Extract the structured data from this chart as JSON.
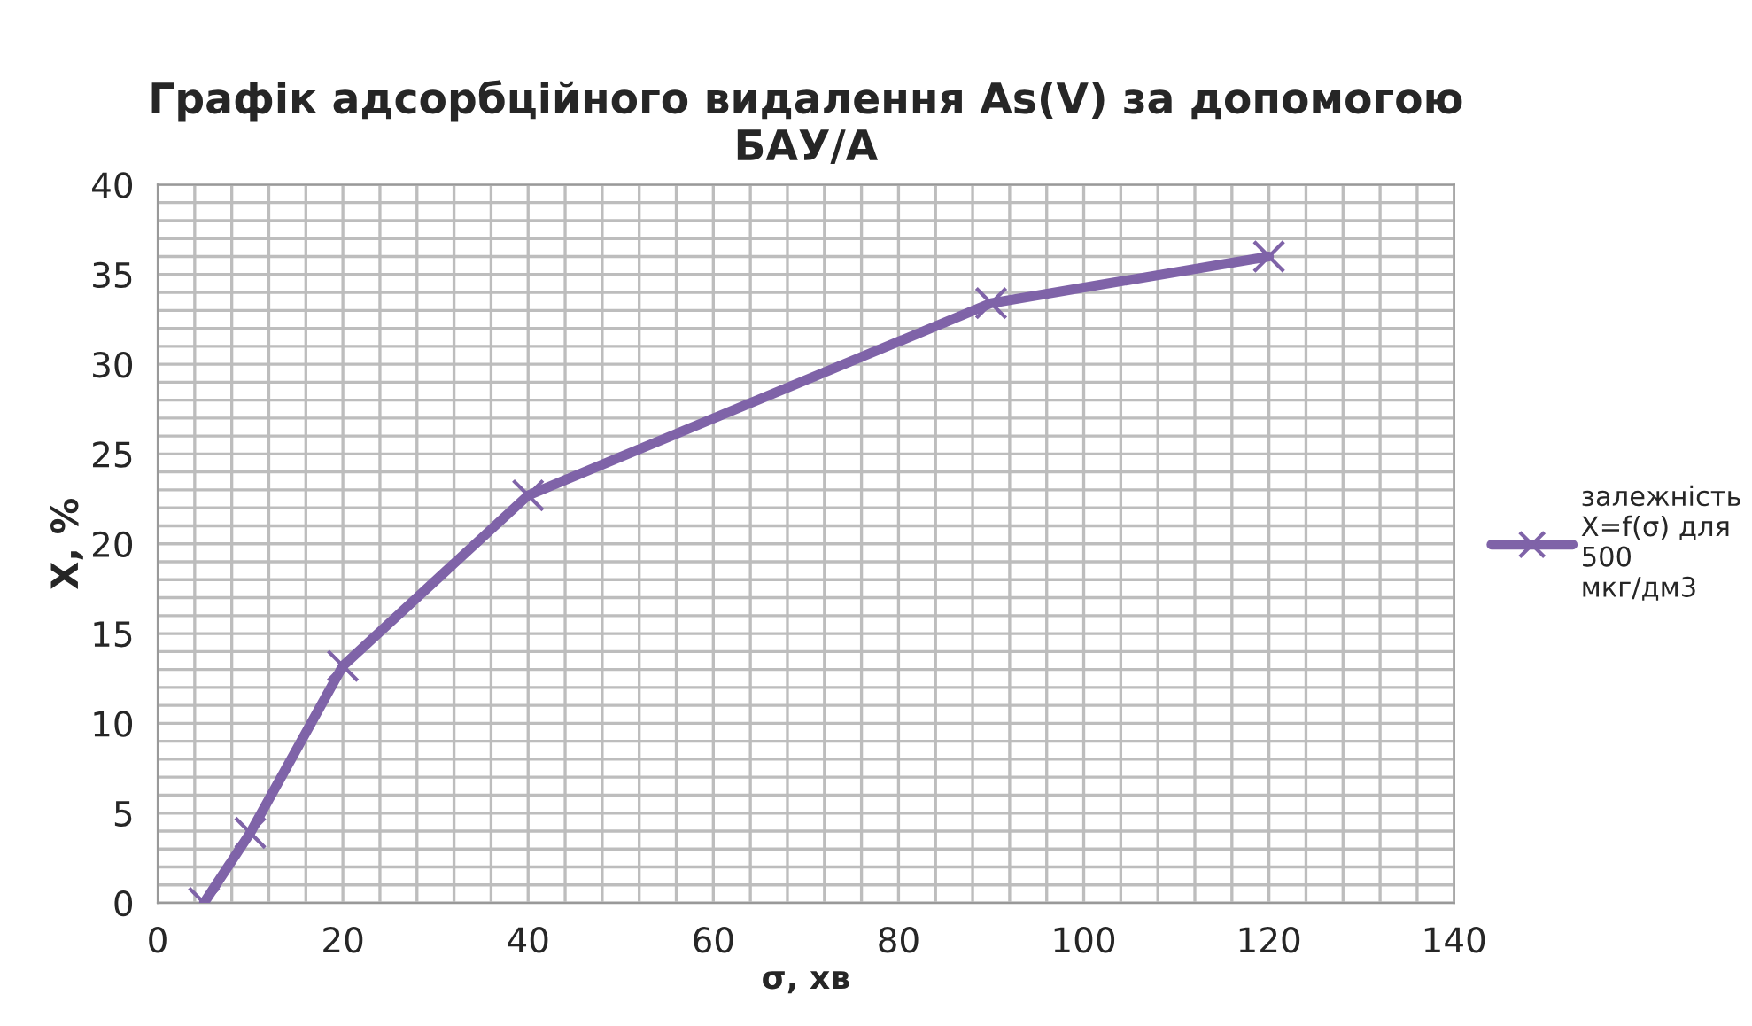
{
  "chart_data": {
    "type": "line",
    "title": "Графік адсорбційного видалення As(V) за допомогою\nБАУ/А",
    "xlabel": "σ, хв",
    "ylabel": "X, %",
    "x": [
      5,
      10,
      20,
      40,
      90,
      120
    ],
    "series": [
      {
        "name": "залежність\nX=f(σ) для\n500\nмкг/дм3",
        "color": "#7f63a8",
        "values": [
          0,
          3.9,
          13.2,
          22.7,
          33.4,
          36
        ]
      }
    ],
    "xlim": [
      0,
      140
    ],
    "xticks": [
      0,
      20,
      40,
      60,
      80,
      100,
      120,
      140
    ],
    "ylim": [
      0,
      40
    ],
    "yticks": [
      0,
      5,
      10,
      15,
      20,
      25,
      30,
      35,
      40
    ],
    "grid": true,
    "legend": "right",
    "marker": "cross",
    "line_style": "solid"
  }
}
